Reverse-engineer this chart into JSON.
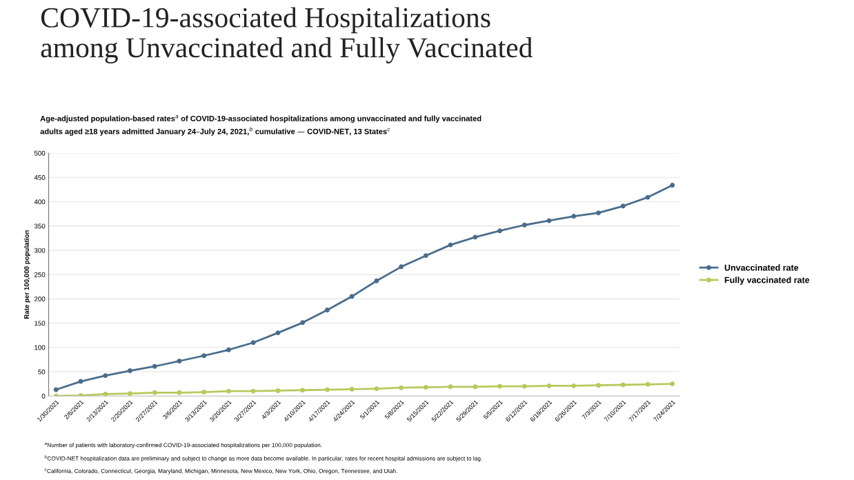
{
  "chart_data": {
    "type": "line",
    "title": "COVID-19-associated Hospitalizations\namong Unvaccinated and Fully Vaccinated",
    "subtitle": "Age-adjusted population-based rates$^{a}$ of COVID-19-associated hospitalizations among unvaccinated and fully vaccinated\nadults aged ≥18 years admitted January 24–July 24, 2021,$^{b}$ cumulative — COVID-NET, 13 States$^{c}$",
    "ylabel": "Rate per 100,000 population",
    "categories": [
      "1/30/2021",
      "2/6/2021",
      "2/13/2021",
      "2/20/2021",
      "2/27/2021",
      "3/6/2021",
      "3/13/2021",
      "3/20/2021",
      "3/27/2021",
      "4/3/2021",
      "4/10/2021",
      "4/17/2021",
      "4/24/2021",
      "5/1/2021",
      "5/8/2021",
      "5/15/2021",
      "5/22/2021",
      "5/29/2021",
      "6/5/2021",
      "6/12/2021",
      "6/19/2021",
      "6/26/2021",
      "7/3/2021",
      "7/10/2021",
      "7/17/2021",
      "7/24/2021"
    ],
    "series": [
      {
        "name": "Unvaccinated rate",
        "color": "#4a6d8c",
        "values": [
          13,
          30,
          42,
          52,
          61,
          72,
          83,
          95,
          110,
          130,
          151,
          177,
          205,
          237,
          266,
          289,
          311,
          327,
          340,
          352,
          361,
          370,
          377,
          391,
          409,
          434
        ]
      },
      {
        "name": "Fully vaccinated rate",
        "color": "#b8c95c",
        "values": [
          0,
          1,
          4,
          5,
          7,
          7,
          8,
          10,
          10,
          11,
          12,
          13,
          14,
          15,
          17,
          18,
          19,
          19,
          20,
          20,
          21,
          21,
          22,
          23,
          24,
          25
        ]
      }
    ],
    "ylim": [
      0,
      500
    ],
    "yticks": [
      0,
      50,
      100,
      150,
      200,
      250,
      300,
      350,
      400,
      450,
      500
    ],
    "grid": "y",
    "legend": "right",
    "marker": "circle",
    "line_style": "solid",
    "annotations": [
      "$^{a}$Number of patients with laboratory-confirmed COVID-19-associated hospitalizations per 100,000 population.",
      "$^{b}$COVID-NET hospitalization data are preliminary and subject to change as more data become available. In particular, rates for recent hospital admissions are subject to lag.",
      "$^{c}$California, Colorado, Connecticut, Georgia, Maryland, Michigan, Minnesota, New Mexico, New York, Ohio, Oregon, Tennessee, and Utah."
    ]
  }
}
